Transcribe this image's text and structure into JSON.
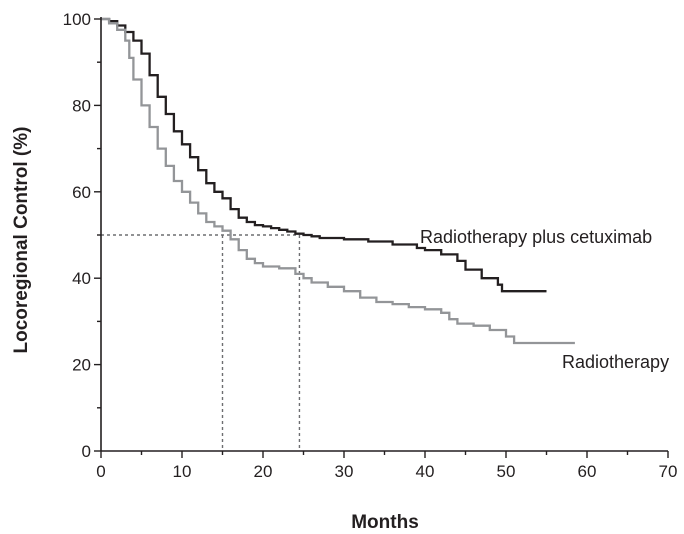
{
  "chart_data": {
    "type": "line",
    "xlabel": "Months",
    "ylabel": "Locoregional Control (%)",
    "xlim": [
      0,
      70
    ],
    "ylim": [
      0,
      100
    ],
    "x_ticks": [
      "0",
      "10",
      "20",
      "30",
      "40",
      "50",
      "60",
      "70"
    ],
    "y_ticks": [
      "0",
      "20",
      "40",
      "60",
      "80",
      "100"
    ],
    "grid": false,
    "series": [
      {
        "name": "Radiotherapy plus cetuximab",
        "color": "#231f20",
        "points": [
          [
            0,
            100
          ],
          [
            1,
            99.5
          ],
          [
            2,
            98.5
          ],
          [
            3,
            97
          ],
          [
            4,
            95
          ],
          [
            5,
            92
          ],
          [
            6,
            87
          ],
          [
            7,
            82
          ],
          [
            8,
            78
          ],
          [
            9,
            74
          ],
          [
            10,
            71
          ],
          [
            11,
            68
          ],
          [
            12,
            65
          ],
          [
            13,
            62
          ],
          [
            14,
            60
          ],
          [
            15,
            58.5
          ],
          [
            16,
            56
          ],
          [
            17,
            54
          ],
          [
            18,
            53
          ],
          [
            19,
            52.3
          ],
          [
            20,
            52
          ],
          [
            21,
            51.6
          ],
          [
            22,
            51.2
          ],
          [
            23,
            50.8
          ],
          [
            24,
            50.3
          ],
          [
            25,
            50
          ],
          [
            26,
            49.7
          ],
          [
            27,
            49.3
          ],
          [
            30,
            49
          ],
          [
            33,
            48.5
          ],
          [
            36,
            47.8
          ],
          [
            39,
            47
          ],
          [
            40,
            46.5
          ],
          [
            42,
            45.5
          ],
          [
            44,
            44
          ],
          [
            45,
            42
          ],
          [
            47,
            40
          ],
          [
            49,
            38.5
          ],
          [
            49.5,
            37
          ],
          [
            52,
            37
          ],
          [
            55,
            37
          ]
        ]
      },
      {
        "name": "Radiotherapy",
        "color": "#939598",
        "points": [
          [
            0,
            100
          ],
          [
            1,
            99
          ],
          [
            2,
            97.5
          ],
          [
            3,
            95
          ],
          [
            3.5,
            91
          ],
          [
            4,
            86
          ],
          [
            5,
            80
          ],
          [
            6,
            75
          ],
          [
            7,
            70
          ],
          [
            8,
            66
          ],
          [
            9,
            62.5
          ],
          [
            10,
            60
          ],
          [
            11,
            57.5
          ],
          [
            12,
            55
          ],
          [
            13,
            53
          ],
          [
            14,
            52
          ],
          [
            15,
            51
          ],
          [
            16,
            49
          ],
          [
            17,
            46.5
          ],
          [
            18,
            44.5
          ],
          [
            19,
            43.5
          ],
          [
            20,
            42.7
          ],
          [
            22,
            42.3
          ],
          [
            24,
            41
          ],
          [
            25,
            40
          ],
          [
            26,
            39
          ],
          [
            28,
            38
          ],
          [
            30,
            37
          ],
          [
            32,
            35.5
          ],
          [
            34,
            34.5
          ],
          [
            36,
            34
          ],
          [
            38,
            33.3
          ],
          [
            40,
            32.8
          ],
          [
            42,
            32
          ],
          [
            43,
            30.5
          ],
          [
            44,
            29.5
          ],
          [
            46,
            29
          ],
          [
            48,
            28
          ],
          [
            50,
            26.5
          ],
          [
            51,
            25
          ],
          [
            55,
            25
          ],
          [
            58.5,
            25
          ]
        ]
      }
    ],
    "reference_lines": {
      "median_y": 50,
      "median_x": [
        15,
        24.5
      ]
    }
  }
}
